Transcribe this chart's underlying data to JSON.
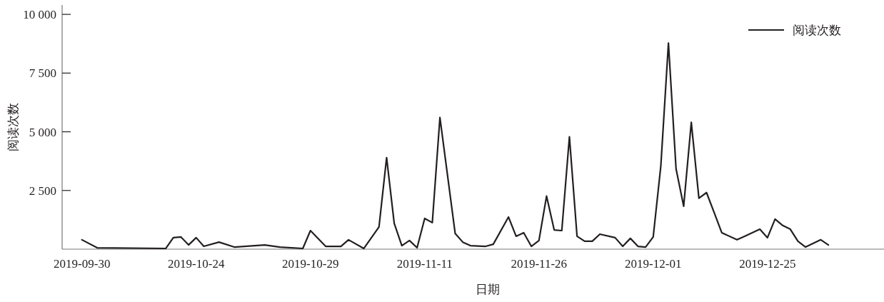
{
  "chart_data": {
    "type": "line",
    "xlabel": "日期",
    "ylabel": "阅读次数",
    "categories": [
      "2019-09-30",
      null,
      null,
      null,
      null,
      null,
      null,
      null,
      null,
      null,
      null,
      null,
      null,
      null,
      null,
      "2019-10-24",
      null,
      null,
      null,
      null,
      null,
      null,
      null,
      null,
      null,
      null,
      null,
      null,
      null,
      null,
      "2019-10-29",
      null,
      null,
      null,
      null,
      null,
      null,
      null,
      null,
      null,
      null,
      null,
      null,
      null,
      null,
      "2019-11-11",
      null,
      null,
      null,
      null,
      null,
      null,
      null,
      null,
      null,
      null,
      null,
      null,
      null,
      null,
      "2019-11-26",
      null,
      null,
      null,
      null,
      null,
      null,
      null,
      null,
      null,
      null,
      null,
      null,
      null,
      null,
      "2019-12-01",
      null,
      null,
      null,
      null,
      null,
      null,
      null,
      null,
      null,
      null,
      null,
      null,
      null,
      null,
      "2019-12-25",
      null,
      null,
      null,
      null,
      null,
      null,
      null,
      null,
      null,
      null,
      null,
      null,
      null,
      null,
      null
    ],
    "series": [
      {
        "name": "阅读次数",
        "color": "#231f20",
        "values": [
          400,
          null,
          60,
          null,
          null,
          null,
          null,
          null,
          null,
          null,
          null,
          30,
          490,
          520,
          180,
          490,
          120,
          null,
          300,
          null,
          90,
          null,
          null,
          null,
          180,
          null,
          90,
          null,
          null,
          30,
          790,
          null,
          120,
          null,
          120,
          400,
          null,
          30,
          null,
          950,
          3900,
          1100,
          150,
          370,
          60,
          1310,
          1130,
          5610,
          null,
          670,
          300,
          150,
          null,
          120,
          210,
          null,
          1370,
          550,
          700,
          120,
          370,
          2260,
          820,
          790,
          4790,
          550,
          340,
          340,
          640,
          null,
          490,
          120,
          460,
          120,
          90,
          520,
          3540,
          8780,
          3420,
          1830,
          5400,
          2170,
          2410,
          1560,
          700,
          null,
          400,
          550,
          null,
          850,
          490,
          1280,
          1010,
          850,
          340,
          90,
          null,
          400,
          180,
          null,
          null,
          null,
          null,
          null,
          null,
          null
        ]
      }
    ],
    "ylim": [
      0,
      10400
    ],
    "yticks": [
      {
        "value": 2500,
        "label": "2 500"
      },
      {
        "value": 5000,
        "label": "5 000"
      },
      {
        "value": 7500,
        "label": "7 500"
      },
      {
        "value": 10000,
        "label": "10 000"
      }
    ],
    "grid": false,
    "legend": "top right",
    "marker": "none",
    "line_style": "solid"
  }
}
